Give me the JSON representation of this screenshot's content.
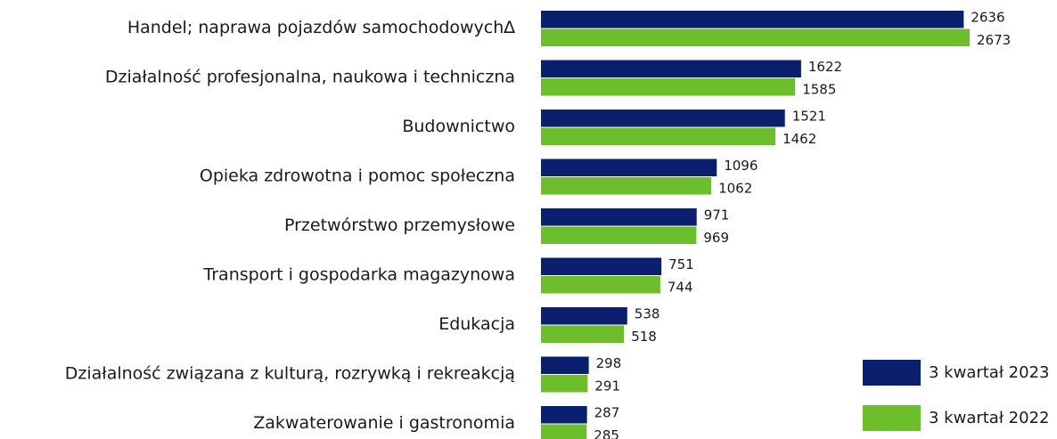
{
  "chart_data": {
    "type": "bar",
    "orientation": "horizontal",
    "categories": [
      "Handel; naprawa pojazdów samochodowych∆",
      "Działalność profesjonalna, naukowa i techniczna",
      "Budownictwo",
      "Opieka zdrowotna i pomoc społeczna",
      "Przetwórstwo przemysłowe",
      "Transport i gospodarka magazynowa",
      "Edukacja",
      "Działalność związana z kulturą, rozrywką i rekreakcją",
      "Zakwaterowanie i gastronomia"
    ],
    "series": [
      {
        "name": "3 kwartał 2023",
        "color": "#0a1f6e",
        "values": [
          2636,
          1622,
          1521,
          1096,
          971,
          751,
          538,
          298,
          287
        ]
      },
      {
        "name": "3 kwartał 2022",
        "color": "#6cbf2a",
        "values": [
          2673,
          1585,
          1462,
          1062,
          969,
          744,
          518,
          291,
          285
        ]
      }
    ],
    "legend": "bottom-right"
  }
}
